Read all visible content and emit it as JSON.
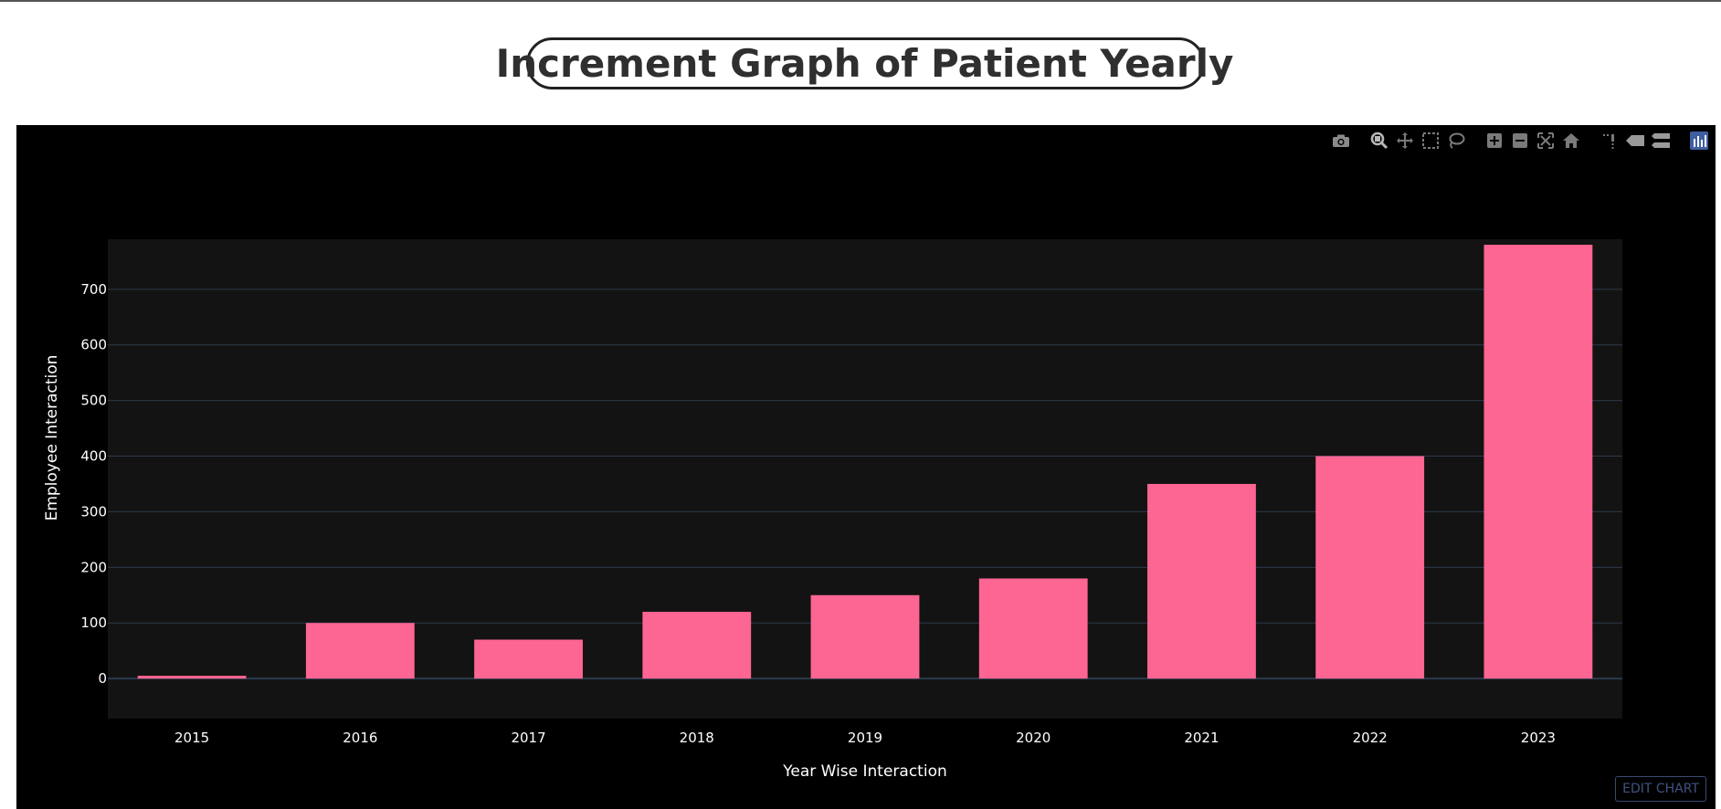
{
  "title": "Increment Graph of Patient Yearly",
  "modebar": {
    "icons": [
      "camera-icon",
      "zoom-icon",
      "pan-icon",
      "box-select-icon",
      "lasso-icon",
      "zoom-in-icon",
      "zoom-out-icon",
      "autoscale-icon",
      "home-icon",
      "spike-lines-icon",
      "hover-closest-icon",
      "hover-compare-icon",
      "plotly-logo-icon"
    ]
  },
  "edit_chart_label": "EDIT CHART",
  "colors": {
    "bar": "#fd6592",
    "plot_bg": "#131313",
    "paper_bg": "#000000",
    "grid": "#2c3a4d",
    "text": "#ffffff"
  },
  "chart_data": {
    "type": "bar",
    "categories": [
      "2015",
      "2016",
      "2017",
      "2018",
      "2019",
      "2020",
      "2021",
      "2022",
      "2023"
    ],
    "values": [
      5,
      100,
      70,
      120,
      150,
      180,
      350,
      400,
      780
    ],
    "xlabel": "Year Wise Interaction",
    "ylabel": "Employee Interaction",
    "yticks": [
      0,
      100,
      200,
      300,
      400,
      500,
      600,
      700
    ],
    "ylim": [
      -72,
      790
    ],
    "grid": true,
    "legend": "none"
  }
}
